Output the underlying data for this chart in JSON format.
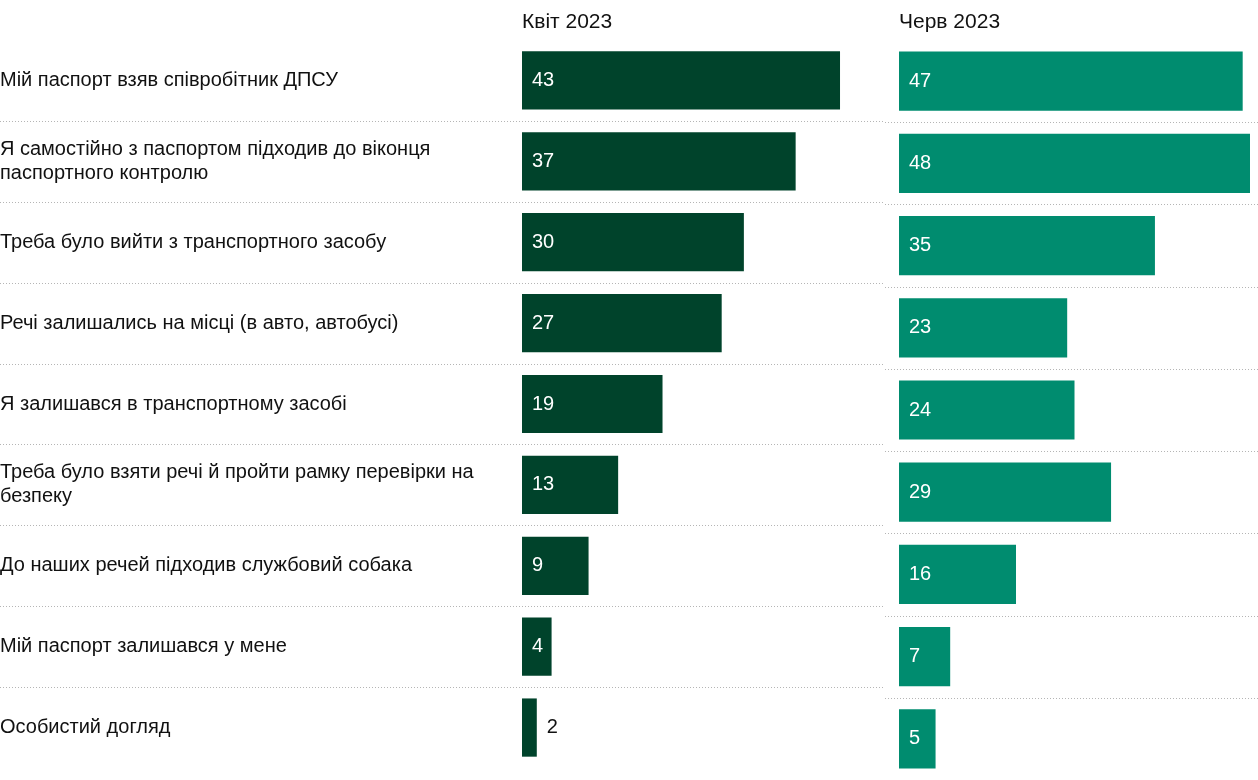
{
  "chart_data": [
    {
      "type": "bar",
      "orientation": "horizontal",
      "title": "Квіт 2023",
      "categories": [
        "Мій паспорт взяв співробітник ДПСУ",
        "Я самостійно з паспортом підходив до віконця паспортного контролю",
        "Треба було вийти з транспортного засобу",
        "Речі залишались на місці (в авто, автобусі)",
        "Я залишався в транспортному засобі",
        "Треба було взяти речі й пройти рамку перевірки на безпеку",
        "До наших речей підходив службовий собака",
        "Мій паспорт залишався у мене",
        "Особистий догляд"
      ],
      "values": [
        43,
        37,
        30,
        27,
        19,
        13,
        9,
        4,
        2
      ],
      "color": "#00432b",
      "data_labels": true,
      "grid": "y",
      "legend": false,
      "tick_labels": "y"
    },
    {
      "type": "bar",
      "orientation": "horizontal",
      "title": "Черв 2023",
      "categories": [
        null,
        null,
        null,
        null,
        null,
        null,
        null,
        null,
        null
      ],
      "values": [
        47,
        48,
        35,
        23,
        24,
        29,
        16,
        7,
        5
      ],
      "color": "#008c6f",
      "data_labels": true,
      "grid": "y",
      "legend": false,
      "tick_labels": false
    }
  ]
}
